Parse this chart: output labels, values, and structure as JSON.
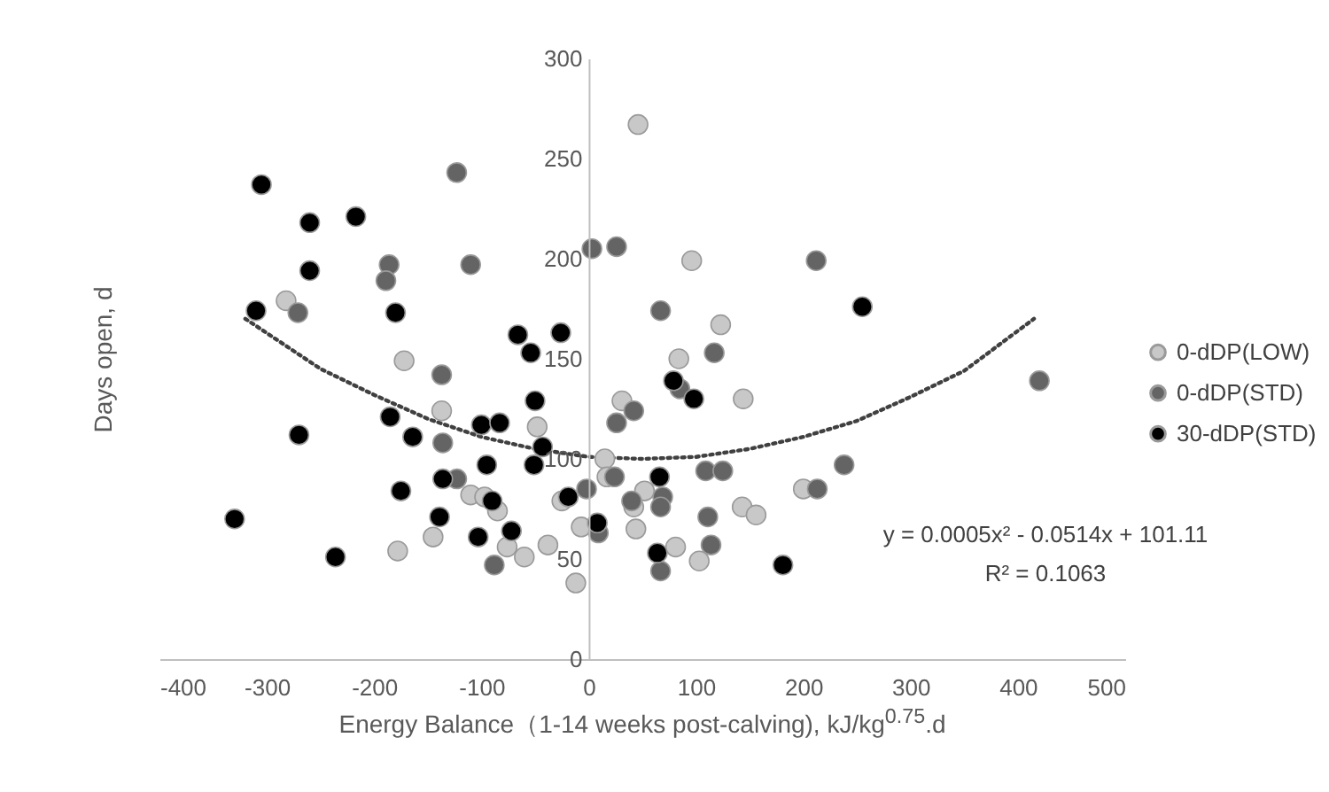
{
  "chart_data": {
    "type": "scatter",
    "xlabel": "Energy Balance（1-14 weeks post-calving), kJ/kg$^{0.75}$.d",
    "ylabel": "Days open, d",
    "xlim": [
      -400,
      500
    ],
    "xticks": [
      -400,
      -300,
      -200,
      -100,
      0,
      100,
      200,
      300,
      400,
      500
    ],
    "ylim": [
      0,
      300
    ],
    "yticks": [
      0,
      50,
      100,
      150,
      200,
      250,
      300
    ],
    "legend": "right",
    "annotations": [
      "y = 0.0005x² - 0.0514x + 101.11",
      "R² = 0.1063"
    ],
    "series": [
      {
        "name": "0-dDP(LOW)",
        "color": "#c8c8c8",
        "marker": "circle",
        "x": [
          -282,
          -172,
          -137,
          -48,
          -110,
          -97,
          -85,
          -145,
          -178,
          -76,
          -60,
          -38,
          46,
          96,
          123,
          84,
          144,
          31,
          15,
          17,
          52,
          42,
          -25,
          -7,
          44,
          -12,
          81,
          103,
          143,
          156,
          200
        ],
        "values": [
          179,
          149,
          124,
          116,
          82,
          81,
          74,
          61,
          54,
          56,
          51,
          57,
          267,
          199,
          167,
          150,
          130,
          129,
          100,
          91,
          84,
          76,
          79,
          66,
          65,
          38,
          56,
          49,
          76,
          72,
          85
        ]
      },
      {
        "name": "0-dDP(STD)",
        "color": "#646464",
        "marker": "circle",
        "x": [
          -123,
          -186,
          -189,
          -110,
          -271,
          -137,
          -136,
          -123,
          -88,
          3,
          26,
          212,
          67,
          117,
          85,
          26,
          42,
          24,
          -2,
          9,
          40,
          69,
          67,
          109,
          125,
          111,
          114,
          67,
          213,
          238,
          420
        ],
        "values": [
          243,
          197,
          189,
          197,
          173,
          142,
          108,
          90,
          47,
          205,
          206,
          199,
          174,
          153,
          135,
          118,
          124,
          91,
          85,
          63,
          79,
          81,
          76,
          94,
          94,
          71,
          57,
          44,
          85,
          97,
          139
        ]
      },
      {
        "name": "30-dDP(STD)",
        "color": "#000000",
        "marker": "circle",
        "x": [
          -305,
          -260,
          -217,
          -260,
          -310,
          -180,
          -66,
          -54,
          -270,
          -185,
          -164,
          -100,
          -83,
          -50,
          -43,
          -51,
          -95,
          -175,
          -136,
          -90,
          -139,
          -103,
          -72,
          -330,
          -236,
          -26,
          -19,
          8,
          66,
          79,
          98,
          64,
          181,
          255
        ],
        "values": [
          237,
          218,
          221,
          194,
          174,
          173,
          162,
          153,
          112,
          121,
          111,
          117,
          118,
          129,
          106,
          97,
          97,
          84,
          90,
          79,
          71,
          61,
          64,
          70,
          51,
          163,
          81,
          68,
          91,
          139,
          130,
          53,
          47,
          176
        ]
      },
      {
        "type": "line",
        "color": "#404040",
        "line_style": "dotted",
        "marker": "none",
        "x": [
          -320,
          -250,
          -200,
          -150,
          -100,
          -50,
          0,
          50,
          100,
          150,
          200,
          250,
          300,
          350,
          415
        ],
        "values": [
          170,
          145,
          132,
          120,
          111,
          105,
          101,
          100,
          101,
          105,
          111,
          119,
          131,
          144,
          170
        ]
      }
    ]
  }
}
